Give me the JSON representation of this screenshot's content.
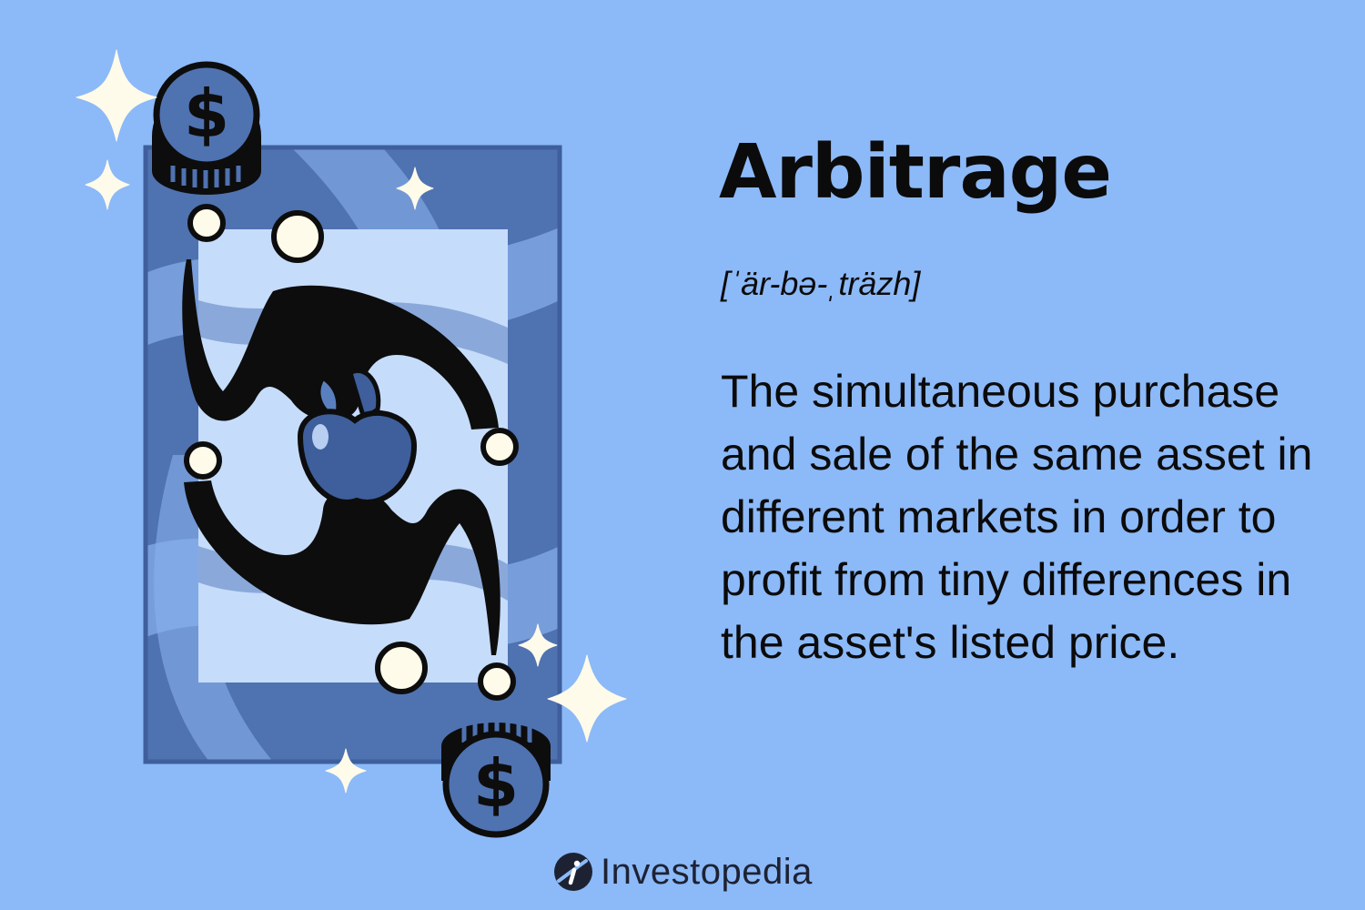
{
  "term": {
    "title": "Arbitrage",
    "pronunciation": "[ˈär-bə-ˌträzh]",
    "definition": "The simultaneous purchase and sale of the same asset in different markets in order to profit from tiny differences in the asset's listed price."
  },
  "illustration": {
    "coin_symbol": "$"
  },
  "brand": {
    "name": "Investopedia"
  },
  "colors": {
    "background": "#8cb9f8",
    "card_dark_blue": "#4f72b1",
    "card_light_blue": "#c6dcfb",
    "ink": "#0b0b0b",
    "sparkle": "#fffbea"
  }
}
